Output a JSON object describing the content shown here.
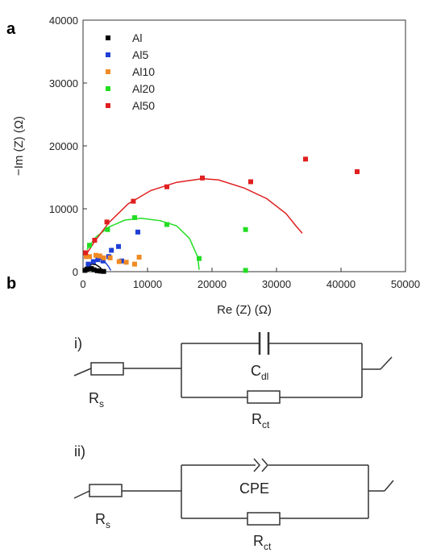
{
  "panel_a_label": "a",
  "panel_b_label": "b",
  "chart_data": {
    "type": "scatter",
    "xlabel": "Re (Z) (Ω)",
    "ylabel": "−Im (Z) (Ω)",
    "xlim": [
      0,
      50000
    ],
    "ylim": [
      0,
      40000
    ],
    "xticks": [
      0,
      10000,
      20000,
      30000,
      40000,
      50000
    ],
    "yticks": [
      0,
      10000,
      20000,
      30000,
      40000
    ],
    "legend_position": "top-left",
    "series": [
      {
        "name": "Al",
        "color": "#000000",
        "points": [
          [
            300,
            200
          ],
          [
            600,
            400
          ],
          [
            900,
            600
          ],
          [
            1300,
            500
          ],
          [
            1700,
            300
          ],
          [
            2200,
            150
          ],
          [
            2700,
            80
          ],
          [
            3200,
            40
          ]
        ],
        "fit": [
          [
            300,
            200
          ],
          [
            800,
            900
          ],
          [
            1400,
            1200
          ],
          [
            2000,
            1100
          ],
          [
            2600,
            700
          ],
          [
            3000,
            200
          ]
        ]
      },
      {
        "name": "Al5",
        "color": "#1f3fd6",
        "points": [
          [
            800,
            1200
          ],
          [
            1600,
            1600
          ],
          [
            2300,
            1900
          ],
          [
            3100,
            1700
          ],
          [
            4000,
            2400
          ],
          [
            4400,
            3400
          ],
          [
            5500,
            4000
          ],
          [
            6000,
            1700
          ],
          [
            8500,
            6300
          ]
        ],
        "fit": [
          [
            800,
            1000
          ],
          [
            1600,
            1800
          ],
          [
            2400,
            2100
          ],
          [
            3200,
            1800
          ],
          [
            3900,
            900
          ],
          [
            4300,
            200
          ]
        ]
      },
      {
        "name": "Al10",
        "color": "#f08a24",
        "points": [
          [
            500,
            2400
          ],
          [
            1000,
            2400
          ],
          [
            2000,
            2600
          ],
          [
            2600,
            2500
          ],
          [
            3200,
            2200
          ],
          [
            4200,
            2200
          ],
          [
            5600,
            1600
          ],
          [
            6700,
            1500
          ],
          [
            8000,
            1200
          ],
          [
            8700,
            2300
          ]
        ],
        "fit": []
      },
      {
        "name": "Al20",
        "color": "#22dd22",
        "points": [
          [
            1000,
            4200
          ],
          [
            3800,
            6700
          ],
          [
            8000,
            8600
          ],
          [
            13000,
            7500
          ],
          [
            18000,
            2100
          ],
          [
            25200,
            6700
          ],
          [
            25200,
            200
          ]
        ],
        "fit": [
          [
            600,
            3500
          ],
          [
            2000,
            5500
          ],
          [
            4000,
            7100
          ],
          [
            6500,
            8200
          ],
          [
            9000,
            8500
          ],
          [
            12000,
            8100
          ],
          [
            14500,
            7300
          ],
          [
            16500,
            5300
          ],
          [
            17800,
            2300
          ],
          [
            18000,
            300
          ]
        ]
      },
      {
        "name": "Al50",
        "color": "#e01f1f",
        "points": [
          [
            400,
            3000
          ],
          [
            1800,
            5000
          ],
          [
            3700,
            7900
          ],
          [
            7800,
            11200
          ],
          [
            13000,
            13500
          ],
          [
            18500,
            14900
          ],
          [
            26000,
            14300
          ],
          [
            34500,
            17900
          ],
          [
            42500,
            15900
          ]
        ],
        "fit": [
          [
            400,
            2600
          ],
          [
            1800,
            4800
          ],
          [
            4000,
            7800
          ],
          [
            7000,
            10800
          ],
          [
            10500,
            12900
          ],
          [
            14500,
            14200
          ],
          [
            18500,
            14800
          ],
          [
            21000,
            14600
          ],
          [
            25000,
            13300
          ],
          [
            28500,
            11600
          ],
          [
            31500,
            9200
          ],
          [
            33000,
            7300
          ],
          [
            34000,
            6100
          ]
        ]
      }
    ]
  },
  "circuits": {
    "i": {
      "label": "i)",
      "rs": "R",
      "rs_sub": "s",
      "cap": "C",
      "cap_sub": "dl",
      "rct": "R",
      "rct_sub": "ct"
    },
    "ii": {
      "label": "ii)",
      "rs": "R",
      "rs_sub": "s",
      "cpe": "CPE",
      "rct": "R",
      "rct_sub": "ct"
    }
  }
}
